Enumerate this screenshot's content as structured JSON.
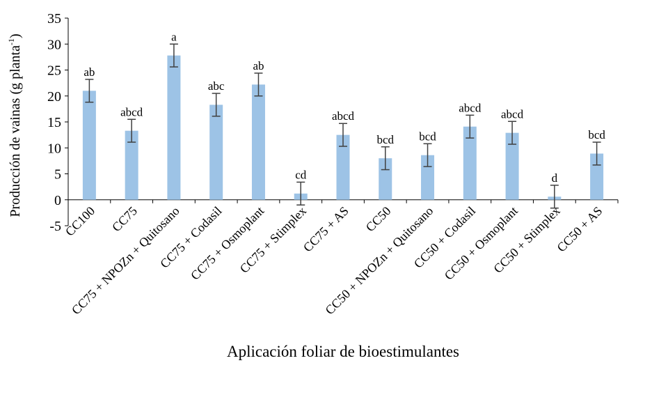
{
  "chart_data": {
    "type": "bar",
    "title": "",
    "xlabel": "Aplicación foliar de bioestimulantes",
    "ylabel_main": "Producción de vainas (g planta",
    "ylabel_sup": "-1",
    "ylabel_close": ")",
    "ylim": [
      -5,
      35
    ],
    "yticks": [
      -5,
      0,
      5,
      10,
      15,
      20,
      25,
      30,
      35
    ],
    "grid": false,
    "bar_color": "#9dc3e6",
    "error_color": "#404040",
    "categories": [
      "CC100",
      "CC75",
      "CC75 + NPOZn + Quitosano",
      "CC75 + Codasil",
      "CC75 + Osmoplant",
      "CC75 + Stimplex",
      "CC75 + AS",
      "CC50",
      "CC50 + NPOZn + Quitosano",
      "CC50 + Codasil",
      "CC50 + Osmoplant",
      "CC50 + Stimplex",
      "CC50 + AS"
    ],
    "values": [
      21.0,
      13.3,
      27.8,
      18.3,
      22.2,
      1.2,
      12.5,
      8.0,
      8.6,
      14.1,
      12.9,
      0.6,
      8.9
    ],
    "errors": [
      2.2,
      2.2,
      2.2,
      2.2,
      2.2,
      2.2,
      2.2,
      2.2,
      2.2,
      2.2,
      2.2,
      2.2,
      2.2
    ],
    "letters": [
      "ab",
      "abcd",
      "a",
      "abc",
      "ab",
      "cd",
      "abcd",
      "bcd",
      "bcd",
      "abcd",
      "abcd",
      "d",
      "bcd"
    ]
  }
}
